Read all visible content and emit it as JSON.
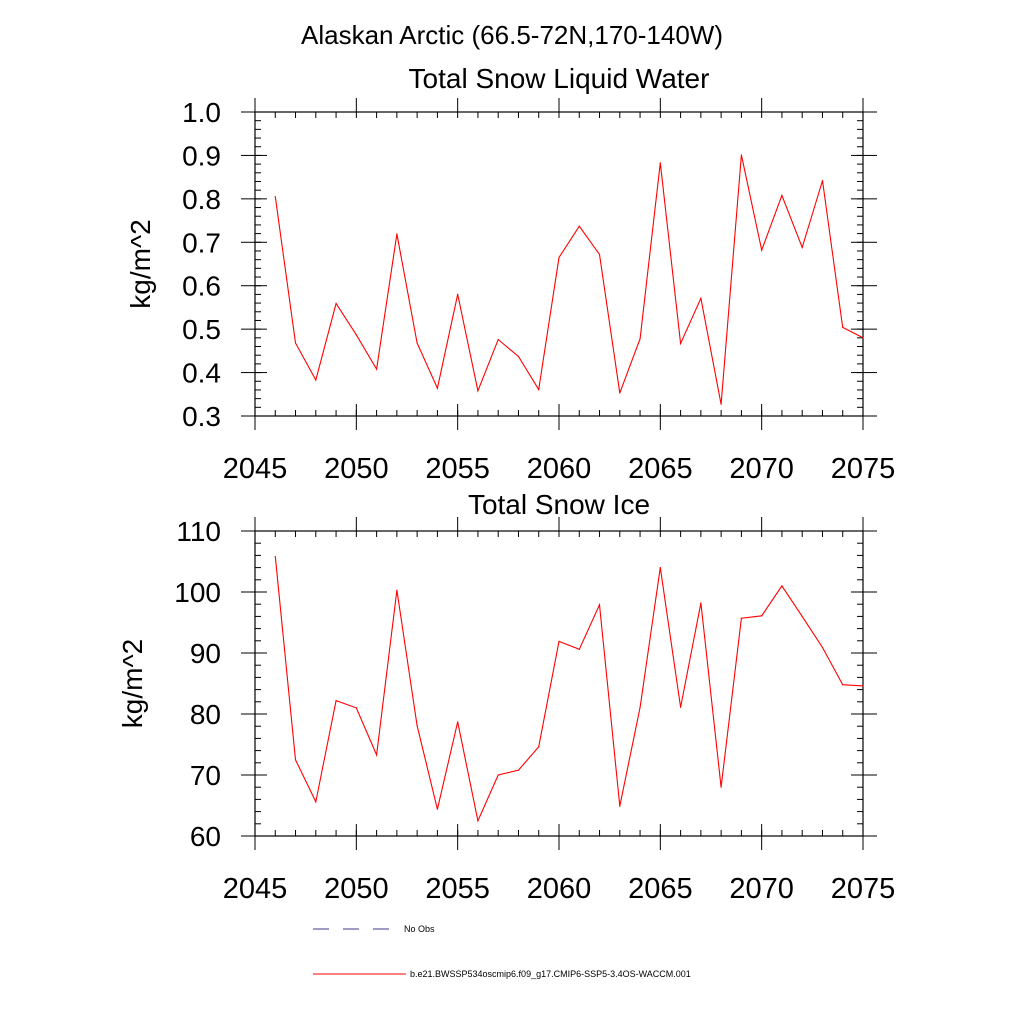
{
  "figure": {
    "title": "Alaskan Arctic (66.5-72N,170-140W)"
  },
  "chart_data": [
    {
      "type": "line",
      "title": "Total Snow Liquid Water",
      "xlabel": "",
      "ylabel": "kg/m^2",
      "xlim": [
        2045,
        2075
      ],
      "ylim": [
        0.3,
        1.0
      ],
      "xticks": [
        2045,
        2050,
        2055,
        2060,
        2065,
        2070,
        2075
      ],
      "xtick_labels": [
        "2045",
        "2050",
        "2055",
        "2060",
        "2065",
        "2070",
        "2075"
      ],
      "yticks": [
        0.3,
        0.4,
        0.5,
        0.6,
        0.7,
        0.8,
        0.9,
        1.0
      ],
      "ytick_labels": [
        "0.3",
        "0.4",
        "0.5",
        "0.6",
        "0.7",
        "0.8",
        "0.9",
        "1.0"
      ],
      "grid": false,
      "x": [
        2046,
        2047,
        2048,
        2049,
        2050,
        2051,
        2052,
        2053,
        2054,
        2055,
        2056,
        2057,
        2058,
        2059,
        2060,
        2061,
        2062,
        2063,
        2064,
        2065,
        2066,
        2067,
        2068,
        2069,
        2070,
        2071,
        2072,
        2073,
        2074,
        2075
      ],
      "series": [
        {
          "name": "b.e21.BWSSP534oscmip6.f09_g17.CMIP6-SSP5-3.4OS-WACCM.001",
          "color": "#ff0000",
          "values": [
            0.805,
            0.468,
            0.383,
            0.559,
            0.487,
            0.408,
            0.719,
            0.468,
            0.364,
            0.58,
            0.358,
            0.476,
            0.437,
            0.361,
            0.665,
            0.737,
            0.672,
            0.353,
            0.478,
            0.883,
            0.467,
            0.571,
            0.327,
            0.901,
            0.682,
            0.808,
            0.688,
            0.842,
            0.504,
            0.48
          ]
        }
      ]
    },
    {
      "type": "line",
      "title": "Total Snow Ice",
      "xlabel": "",
      "ylabel": "kg/m^2",
      "xlim": [
        2045,
        2075
      ],
      "ylim": [
        60,
        110
      ],
      "xticks": [
        2045,
        2050,
        2055,
        2060,
        2065,
        2070,
        2075
      ],
      "xtick_labels": [
        "2045",
        "2050",
        "2055",
        "2060",
        "2065",
        "2070",
        "2075"
      ],
      "yticks": [
        60,
        70,
        80,
        90,
        100,
        110
      ],
      "ytick_labels": [
        "60",
        "70",
        "80",
        "90",
        "100",
        "110"
      ],
      "grid": false,
      "x": [
        2046,
        2047,
        2048,
        2049,
        2050,
        2051,
        2052,
        2053,
        2054,
        2055,
        2056,
        2057,
        2058,
        2059,
        2060,
        2061,
        2062,
        2063,
        2064,
        2065,
        2066,
        2067,
        2068,
        2069,
        2070,
        2071,
        2072,
        2073,
        2074,
        2075
      ],
      "series": [
        {
          "name": "b.e21.BWSSP534oscmip6.f09_g17.CMIP6-SSP5-3.4OS-WACCM.001",
          "color": "#ff0000",
          "values": [
            105.8,
            72.5,
            65.6,
            82.2,
            81.0,
            73.3,
            100.3,
            78.1,
            64.4,
            78.7,
            62.5,
            70.0,
            70.8,
            74.6,
            91.9,
            90.6,
            97.9,
            64.9,
            81.1,
            104.0,
            81.1,
            98.2,
            68.0,
            95.7,
            96.1,
            101.0,
            96.0,
            90.9,
            84.8,
            84.6
          ]
        }
      ]
    }
  ],
  "legend": {
    "placement": "bottom",
    "entries": [
      {
        "label": "No Obs",
        "color": "#3a3a8c",
        "style": "dashed"
      },
      {
        "label": "b.e21.BWSSP534oscmip6.f09_g17.CMIP6-SSP5-3.4OS-WACCM.001",
        "color": "#ff0000",
        "style": "solid"
      }
    ]
  }
}
